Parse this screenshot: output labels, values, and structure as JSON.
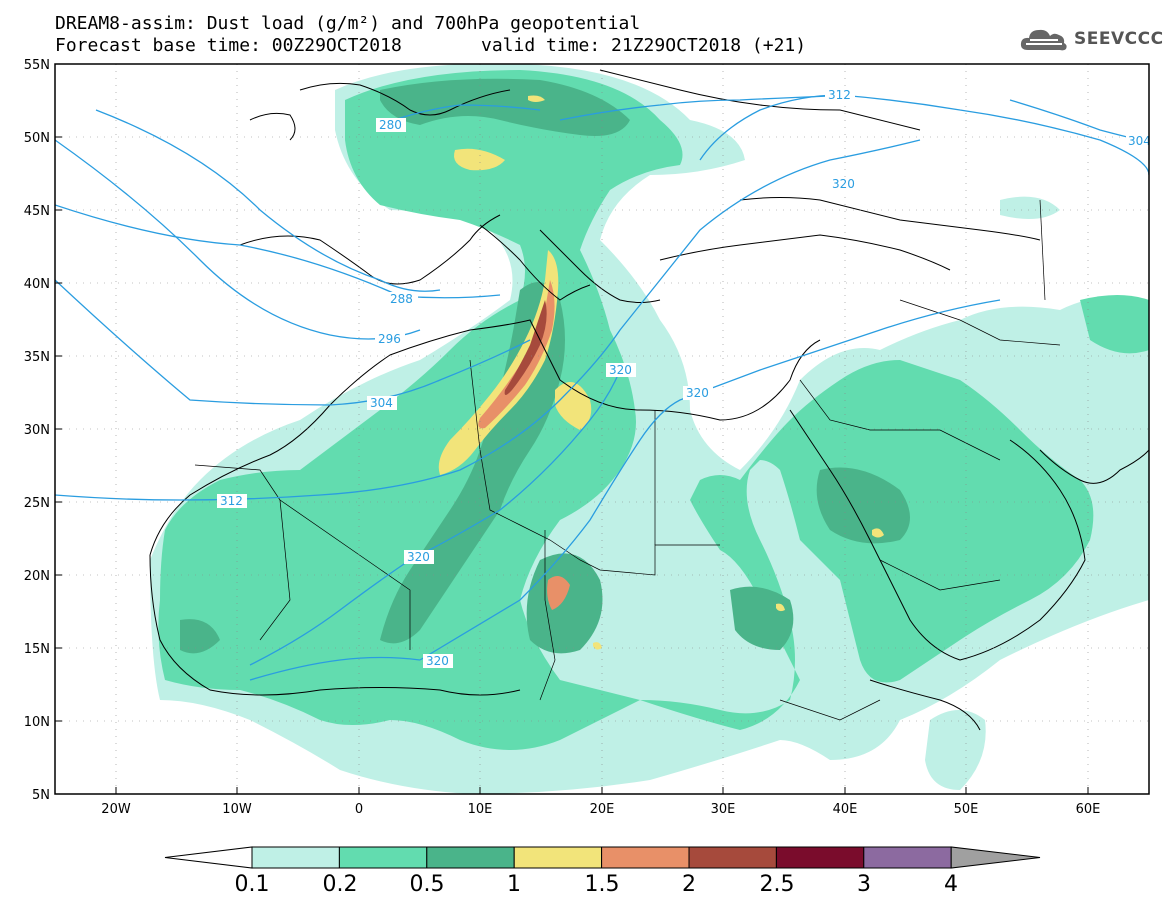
{
  "header": {
    "title_line1": "DREAM8-assim: Dust load (g/m²) and 700hPa geopotential",
    "title_line2": "Forecast base time: 00Z29OCT2018",
    "valid_time": "valid time: 21Z29OCT2018 (+21)"
  },
  "logo": {
    "text": "SEEVCCC",
    "icon": "cloud-icon"
  },
  "map": {
    "lat_labels": [
      "55N",
      "50N",
      "45N",
      "40N",
      "35N",
      "30N",
      "25N",
      "20N",
      "15N",
      "10N",
      "5N"
    ],
    "lon_labels": [
      "20W",
      "10W",
      "0",
      "10E",
      "20E",
      "30E",
      "40E",
      "50E",
      "60E"
    ],
    "contour_labels": [
      "280",
      "288",
      "296",
      "304",
      "312",
      "312",
      "320",
      "320",
      "320",
      "320",
      "320",
      "304"
    ]
  },
  "colorbar": {
    "ticks": [
      "0.1",
      "0.2",
      "0.5",
      "1",
      "1.5",
      "2",
      "2.5",
      "3",
      "4"
    ],
    "colors": [
      "#bff0e6",
      "#62dcaf",
      "#4ab48a",
      "#f2e47a",
      "#e89068",
      "#a64a3c",
      "#7a0c2c",
      "#8c6aa0",
      "#a0a0a0"
    ]
  },
  "colors": {
    "contour": "#2a9de0",
    "dust_low": "#bff0e6",
    "dust_mid": "#62dcaf",
    "dust_high": "#4ab48a",
    "dust_yellow": "#f2e47a",
    "dust_orange": "#e89068",
    "dust_red": "#a64a3c"
  }
}
